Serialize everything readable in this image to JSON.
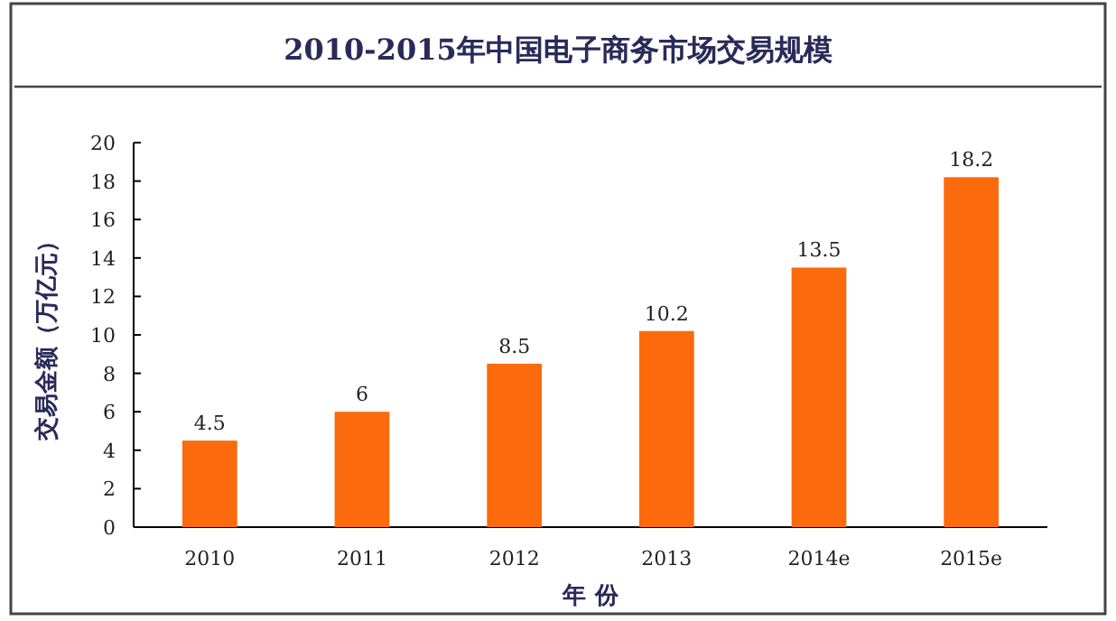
{
  "chart_data": {
    "type": "bar",
    "title": "2010-2015年中国电子商务市场交易规模",
    "xlabel": "年 份",
    "ylabel": "交易金额（万亿元）",
    "categories": [
      "2010",
      "2011",
      "2012",
      "2013",
      "2014e",
      "2015e"
    ],
    "values": [
      4.5,
      6,
      8.5,
      10.2,
      13.5,
      18.2
    ],
    "color": "#fb6a0c",
    "ylim": [
      0,
      20
    ],
    "yticks": [
      0,
      2,
      4,
      6,
      8,
      10,
      12,
      14,
      16,
      18,
      20
    ],
    "data_labels": true,
    "grid": false
  }
}
